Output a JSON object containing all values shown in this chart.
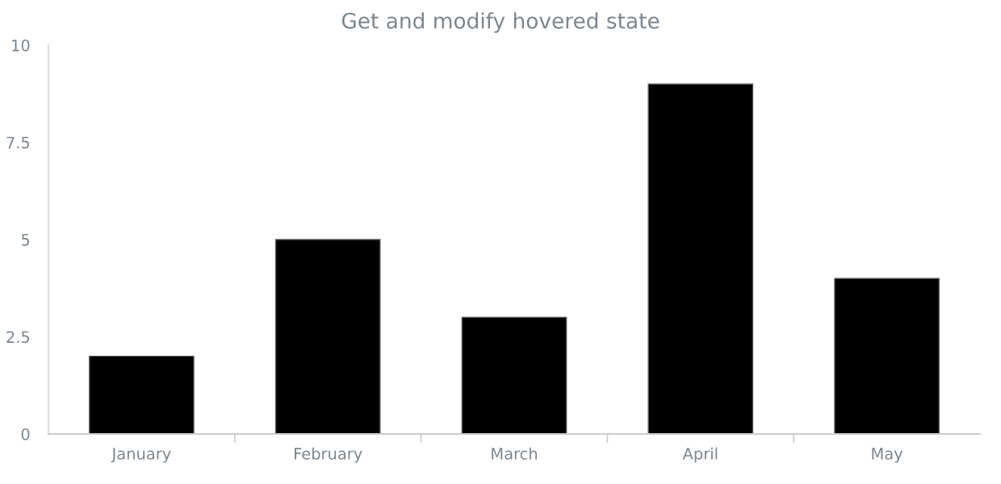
{
  "chart_data": {
    "type": "bar",
    "title": "Get and modify hovered state",
    "categories": [
      "January",
      "February",
      "March",
      "April",
      "May"
    ],
    "values": [
      2,
      5,
      3,
      9,
      4
    ],
    "color": "#000000",
    "ylim": [
      0,
      10
    ],
    "yticks": [
      0,
      2.5,
      5,
      7.5,
      10
    ],
    "grid": false
  }
}
